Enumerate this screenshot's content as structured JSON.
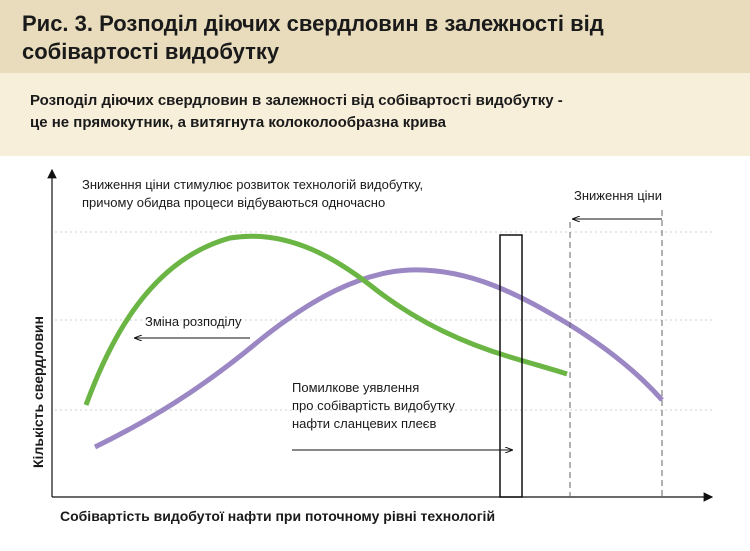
{
  "header": {
    "title": [
      "Рис. 3. Розподіл діючих свердловин в залежності від",
      "собівартості видобутку"
    ]
  },
  "subtitle": [
    "Розподіл діючих свердловин в залежності від собівартості видобутку -",
    "це не прямокутник, а витягнута колоколообразна крива"
  ],
  "axes": {
    "y_label": "Кількість свердловин",
    "x_label": "Собівартість видобутої нафти при поточному рівні технологій"
  },
  "annotations": {
    "top_note": [
      "Зниження ціни стимулює розвиток технологій видобутку,",
      "причому обидва процеси відбуваються одночасно"
    ],
    "price_drop": "Зниження ціни",
    "distribution_change": "Зміна розподілу",
    "misconception": [
      "Помилкове уявлення",
      "про собівартість видобутку",
      "нафти сланцевих плеєв"
    ]
  }
}
